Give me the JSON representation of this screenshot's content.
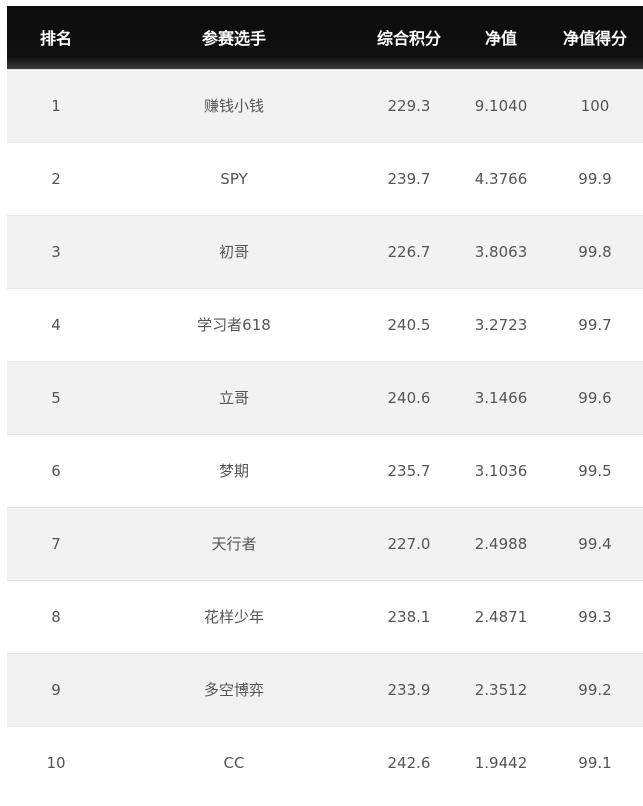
{
  "table": {
    "headers": [
      "排名",
      "参赛选手",
      "综合积分",
      "净值",
      "净值得分"
    ],
    "rows": [
      [
        "1",
        "赚钱小钱",
        "229.3",
        "9.1040",
        "100"
      ],
      [
        "2",
        "SPY",
        "239.7",
        "4.3766",
        "99.9"
      ],
      [
        "3",
        "初哥",
        "226.7",
        "3.8063",
        "99.8"
      ],
      [
        "4",
        "学习者618",
        "240.5",
        "3.2723",
        "99.7"
      ],
      [
        "5",
        "立哥",
        "240.6",
        "3.1466",
        "99.6"
      ],
      [
        "6",
        "梦期",
        "235.7",
        "3.1036",
        "99.5"
      ],
      [
        "7",
        "天行者",
        "227.0",
        "2.4988",
        "99.4"
      ],
      [
        "8",
        "花样少年",
        "238.1",
        "2.4871",
        "99.3"
      ],
      [
        "9",
        "多空博弈",
        "233.9",
        "2.3512",
        "99.2"
      ],
      [
        "10",
        "CC",
        "242.6",
        "1.9442",
        "99.1"
      ]
    ]
  }
}
